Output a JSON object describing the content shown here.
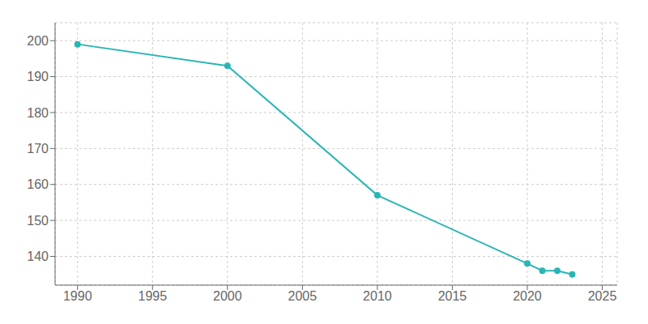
{
  "chart_data": {
    "type": "line",
    "x": [
      1990,
      2000,
      2010,
      2020,
      2021,
      2022,
      2023
    ],
    "values": [
      199,
      193,
      157,
      138,
      136,
      136,
      135
    ],
    "color": "#2ab5b5",
    "marker": "circle",
    "xlim": [
      1988.5,
      2026
    ],
    "ylim": [
      132,
      205
    ],
    "xticks": [
      1990,
      1995,
      2000,
      2005,
      2010,
      2015,
      2020,
      2025
    ],
    "yticks": [
      140,
      150,
      160,
      170,
      180,
      190,
      200
    ],
    "grid": true
  }
}
